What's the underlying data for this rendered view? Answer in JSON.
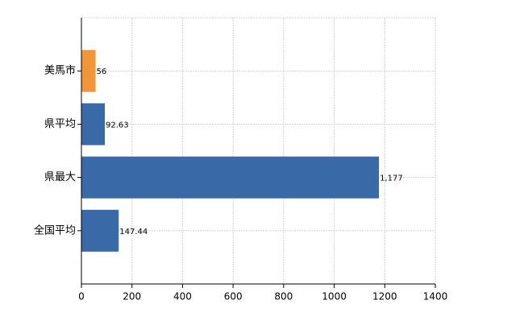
{
  "chart_data": {
    "type": "hbar",
    "categories": [
      "美馬市",
      "県平均",
      "県最大",
      "全国平均"
    ],
    "values": [
      56,
      92.63,
      1177,
      147.44
    ],
    "value_labels": [
      "56",
      "92.63",
      "1,177",
      "147.44"
    ],
    "colors": [
      "#f0953a",
      "#3a69a8",
      "#3a69a8",
      "#3a69a8"
    ],
    "xlim": [
      0,
      1400
    ],
    "xticks": [
      0,
      200,
      400,
      600,
      800,
      1000,
      1200,
      1400
    ],
    "grid": true
  }
}
